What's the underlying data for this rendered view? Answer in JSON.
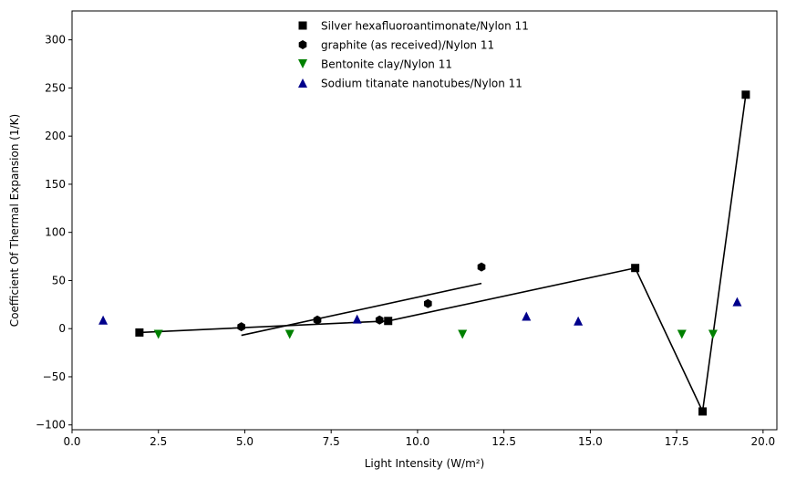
{
  "chart_data": {
    "type": "scatter",
    "xlabel": "Light Intensity (W/m²)",
    "ylabel": "Coefficient Of Thermal Expansion (1/K)",
    "xlim": [
      0,
      20.4
    ],
    "ylim": [
      -105,
      330
    ],
    "xticks": [
      0.0,
      2.5,
      5.0,
      7.5,
      10.0,
      12.5,
      15.0,
      17.5,
      20.0
    ],
    "xtick_labels": [
      "0.0",
      "2.5",
      "5.0",
      "7.5",
      "10.0",
      "12.5",
      "15.0",
      "17.5",
      "20.0"
    ],
    "yticks": [
      -100,
      -50,
      0,
      50,
      100,
      150,
      200,
      250,
      300
    ],
    "ytick_labels": [
      "−100",
      "−50",
      "0",
      "50",
      "100",
      "150",
      "200",
      "250",
      "300"
    ],
    "grid": false,
    "legend_position": "top-center",
    "series": [
      {
        "name": "Silver hexafluoroantimonate/Nylon 11",
        "marker": "square",
        "color": "#000000",
        "x": [
          1.95,
          9.15,
          16.3,
          18.25,
          19.5
        ],
        "y": [
          -4,
          8,
          63,
          -86,
          243
        ]
      },
      {
        "name": "graphite (as received)/Nylon 11",
        "marker": "hexagon",
        "color": "#000000",
        "x": [
          4.9,
          7.1,
          8.9,
          10.3,
          11.85
        ],
        "y": [
          2,
          9,
          9,
          26,
          64
        ]
      },
      {
        "name": "Bentonite clay/Nylon 11",
        "marker": "triangle-down",
        "color": "#008000",
        "x": [
          2.5,
          6.3,
          11.3,
          17.65,
          18.55
        ],
        "y": [
          -6,
          -6,
          -6,
          -6,
          -6
        ]
      },
      {
        "name": "Sodium titanate nanotubes/Nylon 11",
        "marker": "triangle-up",
        "color": "#00008b",
        "x": [
          0.9,
          8.25,
          13.15,
          14.65,
          19.25
        ],
        "y": [
          9,
          10,
          13,
          8,
          28
        ]
      }
    ],
    "lines": [
      {
        "kind": "connecting",
        "color": "#000000",
        "x": [
          1.95,
          9.15,
          16.3,
          18.25,
          19.5
        ],
        "y": [
          -4,
          8,
          63,
          -86,
          243
        ]
      },
      {
        "kind": "fit",
        "color": "#000000",
        "x": [
          4.9,
          11.85
        ],
        "y": [
          -7,
          47
        ]
      }
    ]
  }
}
